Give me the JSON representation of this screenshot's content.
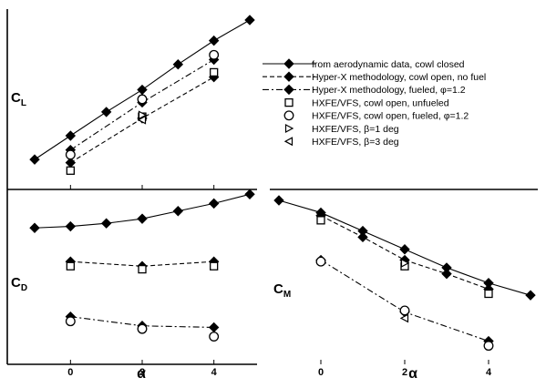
{
  "colors": {
    "ink": "#000000",
    "background": "#ffffff"
  },
  "chart_data": [
    {
      "id": "cl",
      "type": "line",
      "ylabel": "C",
      "ylabel_sub": "L",
      "xlabel": "",
      "xlim": [
        -1,
        5
      ],
      "ylim": [
        0.0,
        1.0
      ],
      "x_ticks": [
        0,
        2,
        4
      ],
      "x_tick_labels": [
        "",
        "",
        ""
      ],
      "series": [
        {
          "name": "from aerodynamic data, cowl closed",
          "style": "solid",
          "marker": "filled-diamond",
          "x": [
            -1,
            0,
            1,
            2,
            3,
            4,
            5
          ],
          "y": [
            0.12,
            0.27,
            0.42,
            0.56,
            0.72,
            0.87,
            1.0
          ]
        },
        {
          "name": "Hyper-X methodology, cowl open, no fuel",
          "style": "dashed",
          "marker": "filled-diamond",
          "x": [
            0,
            2,
            4
          ],
          "y": [
            0.1,
            0.38,
            0.64
          ]
        },
        {
          "name": "Hyper-X methodology, fueled, φ=1.2",
          "style": "dashdot",
          "marker": "filled-diamond",
          "x": [
            0,
            2,
            4
          ],
          "y": [
            0.18,
            0.48,
            0.75
          ]
        },
        {
          "name": "HXFE/VFS, cowl open, unfueled",
          "style": "none",
          "marker": "open-square",
          "x": [
            0,
            2,
            4
          ],
          "y": [
            0.05,
            0.39,
            0.67
          ]
        },
        {
          "name": "HXFE/VFS, cowl open, fueled, φ=1.2",
          "style": "none",
          "marker": "open-circle",
          "x": [
            0,
            2,
            4
          ],
          "y": [
            0.15,
            0.5,
            0.78
          ]
        },
        {
          "name": "HXFE/VFS, β=1 deg",
          "style": "none",
          "marker": "open-triangle-right",
          "x": [
            2
          ],
          "y": [
            0.4
          ]
        },
        {
          "name": "HXFE/VFS, β=3 deg",
          "style": "none",
          "marker": "open-triangle-left",
          "x": [
            2
          ],
          "y": [
            0.37
          ]
        }
      ]
    },
    {
      "id": "cd",
      "type": "line",
      "ylabel": "C",
      "ylabel_sub": "D",
      "xlabel": "α",
      "xlim": [
        -1,
        5
      ],
      "ylim": [
        0.0,
        1.0
      ],
      "x_ticks": [
        0,
        2,
        4
      ],
      "x_tick_labels": [
        "0",
        "2",
        "4"
      ],
      "series": [
        {
          "name": "from aerodynamic data, cowl closed",
          "style": "solid",
          "marker": "filled-diamond",
          "x": [
            -1,
            0,
            1,
            2,
            3,
            4,
            5
          ],
          "y": [
            0.82,
            0.83,
            0.85,
            0.88,
            0.93,
            0.98,
            1.04
          ]
        },
        {
          "name": "Hyper-X methodology, cowl open, no fuel",
          "style": "dashed",
          "marker": "filled-diamond",
          "x": [
            0,
            2,
            4
          ],
          "y": [
            0.6,
            0.57,
            0.6
          ]
        },
        {
          "name": "Hyper-X methodology, fueled, φ=1.2",
          "style": "dashdot",
          "marker": "filled-diamond",
          "x": [
            0,
            2,
            4
          ],
          "y": [
            0.24,
            0.18,
            0.17
          ]
        },
        {
          "name": "HXFE/VFS, cowl open, unfueled",
          "style": "none",
          "marker": "open-square",
          "x": [
            0,
            2,
            4
          ],
          "y": [
            0.57,
            0.55,
            0.57
          ]
        },
        {
          "name": "HXFE/VFS, cowl open, fueled, φ=1.2",
          "style": "none",
          "marker": "open-circle",
          "x": [
            0,
            2,
            4
          ],
          "y": [
            0.21,
            0.16,
            0.11
          ]
        }
      ]
    },
    {
      "id": "cm",
      "type": "line",
      "ylabel": "C",
      "ylabel_sub": "M",
      "xlabel": "α",
      "xlim": [
        -1,
        5
      ],
      "ylim": [
        0.0,
        1.0
      ],
      "x_ticks": [
        0,
        2,
        4
      ],
      "x_tick_labels": [
        "0",
        "2",
        "4"
      ],
      "series": [
        {
          "name": "from aerodynamic data, cowl closed",
          "style": "solid",
          "marker": "filled-diamond",
          "x": [
            -1,
            0,
            1,
            2,
            3,
            4,
            5
          ],
          "y": [
            1.0,
            0.92,
            0.8,
            0.68,
            0.56,
            0.46,
            0.38
          ]
        },
        {
          "name": "Hyper-X methodology, cowl open, no fuel",
          "style": "dashed",
          "marker": "filled-diamond",
          "x": [
            0,
            1,
            2,
            3,
            4
          ],
          "y": [
            0.9,
            0.76,
            0.61,
            0.52,
            0.42
          ]
        },
        {
          "name": "Hyper-X methodology, fueled, φ=1.2",
          "style": "dashdot",
          "marker": "filled-diamond",
          "x": [
            0,
            2,
            4
          ],
          "y": [
            0.61,
            0.27,
            0.08
          ]
        },
        {
          "name": "HXFE/VFS, cowl open, unfueled",
          "style": "none",
          "marker": "open-square",
          "x": [
            0,
            2,
            4
          ],
          "y": [
            0.87,
            0.57,
            0.39
          ]
        },
        {
          "name": "HXFE/VFS, cowl open, fueled, φ=1.2",
          "style": "none",
          "marker": "open-circle",
          "x": [
            0,
            2,
            4
          ],
          "y": [
            0.6,
            0.28,
            0.05
          ]
        },
        {
          "name": "HXFE/VFS, β=1 deg",
          "style": "none",
          "marker": "open-triangle-right",
          "x": [
            2
          ],
          "y": [
            0.59
          ]
        },
        {
          "name": "HXFE/VFS, β=3 deg",
          "style": "none",
          "marker": "open-triangle-left",
          "x": [
            2
          ],
          "y": [
            0.23
          ]
        }
      ]
    }
  ],
  "legend": {
    "placement": "right-of-top-panel",
    "entries": [
      {
        "label": "from aerodynamic data, cowl closed",
        "style": "solid",
        "marker": "filled-diamond"
      },
      {
        "label": "Hyper-X methodology, cowl open, no fuel",
        "style": "dashed",
        "marker": "filled-diamond"
      },
      {
        "label": "Hyper-X methodology, fueled, φ=1.2",
        "style": "dashdot",
        "marker": "filled-diamond"
      },
      {
        "label": "HXFE/VFS, cowl open, unfueled",
        "style": "none",
        "marker": "open-square"
      },
      {
        "label": "HXFE/VFS, cowl open, fueled, φ=1.2",
        "style": "none",
        "marker": "open-circle"
      },
      {
        "label": "HXFE/VFS, β=1 deg",
        "style": "none",
        "marker": "open-triangle-right"
      },
      {
        "label": "HXFE/VFS, β=3 deg",
        "style": "none",
        "marker": "open-triangle-left"
      }
    ]
  }
}
